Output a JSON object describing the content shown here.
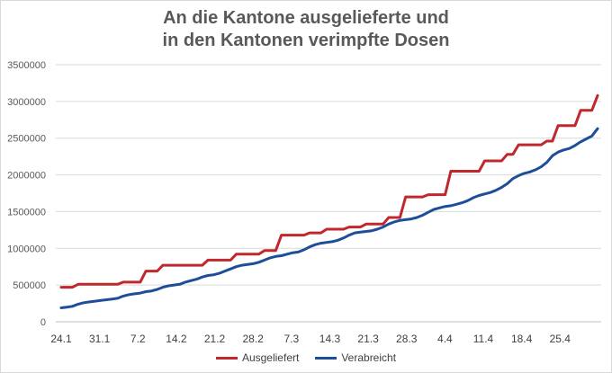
{
  "chart_data": {
    "type": "line",
    "title": [
      "An die Kantone ausgelieferte und",
      "in den Kantonen verimpfte Dosen"
    ],
    "xlabel": "",
    "ylabel": "",
    "x_tick_labels": [
      "24.1",
      "31.1",
      "7.2",
      "14.2",
      "21.2",
      "28.2",
      "7.3",
      "14.3",
      "21.3",
      "28.3",
      "4.4",
      "11.4",
      "18.4",
      "25.4"
    ],
    "x_start": "2021-01-24",
    "x_end": "2021-04-29",
    "ylim": [
      0,
      3500000
    ],
    "y_ticks": [
      0,
      500000,
      1000000,
      1500000,
      2000000,
      2500000,
      3000000,
      3500000
    ],
    "y_tick_labels": [
      "0",
      "500000",
      "1000000",
      "1500000",
      "2000000",
      "2500000",
      "3000000",
      "3500000"
    ],
    "grid": "horizontal",
    "legend_position": "bottom",
    "series": [
      {
        "name": "Ausgeliefert",
        "color": "#c0282d",
        "points": [
          [
            "2021-01-24",
            470000
          ],
          [
            "2021-01-26",
            470000
          ],
          [
            "2021-01-27",
            510000
          ],
          [
            "2021-02-03",
            510000
          ],
          [
            "2021-02-04",
            540000
          ],
          [
            "2021-02-07",
            540000
          ],
          [
            "2021-02-08",
            690000
          ],
          [
            "2021-02-10",
            690000
          ],
          [
            "2021-02-11",
            770000
          ],
          [
            "2021-02-18",
            770000
          ],
          [
            "2021-02-19",
            840000
          ],
          [
            "2021-02-23",
            840000
          ],
          [
            "2021-02-24",
            920000
          ],
          [
            "2021-02-28",
            920000
          ],
          [
            "2021-03-01",
            970000
          ],
          [
            "2021-03-03",
            970000
          ],
          [
            "2021-03-04",
            1180000
          ],
          [
            "2021-03-08",
            1180000
          ],
          [
            "2021-03-09",
            1210000
          ],
          [
            "2021-03-11",
            1210000
          ],
          [
            "2021-03-12",
            1260000
          ],
          [
            "2021-03-15",
            1260000
          ],
          [
            "2021-03-16",
            1290000
          ],
          [
            "2021-03-18",
            1290000
          ],
          [
            "2021-03-19",
            1330000
          ],
          [
            "2021-03-22",
            1330000
          ],
          [
            "2021-03-23",
            1420000
          ],
          [
            "2021-03-25",
            1420000
          ],
          [
            "2021-03-26",
            1700000
          ],
          [
            "2021-03-29",
            1700000
          ],
          [
            "2021-03-30",
            1730000
          ],
          [
            "2021-04-02",
            1730000
          ],
          [
            "2021-04-03",
            2050000
          ],
          [
            "2021-04-08",
            2050000
          ],
          [
            "2021-04-09",
            2190000
          ],
          [
            "2021-04-12",
            2190000
          ],
          [
            "2021-04-13",
            2280000
          ],
          [
            "2021-04-14",
            2280000
          ],
          [
            "2021-04-15",
            2410000
          ],
          [
            "2021-04-19",
            2410000
          ],
          [
            "2021-04-20",
            2460000
          ],
          [
            "2021-04-21",
            2460000
          ],
          [
            "2021-04-22",
            2670000
          ],
          [
            "2021-04-25",
            2670000
          ],
          [
            "2021-04-26",
            2880000
          ],
          [
            "2021-04-28",
            2880000
          ],
          [
            "2021-04-29",
            3080000
          ]
        ]
      },
      {
        "name": "Verabreicht",
        "color": "#1f4e99",
        "points": [
          [
            "2021-01-24",
            190000
          ],
          [
            "2021-01-25",
            200000
          ],
          [
            "2021-01-26",
            210000
          ],
          [
            "2021-01-27",
            240000
          ],
          [
            "2021-01-28",
            260000
          ],
          [
            "2021-01-29",
            270000
          ],
          [
            "2021-01-30",
            280000
          ],
          [
            "2021-01-31",
            290000
          ],
          [
            "2021-02-01",
            300000
          ],
          [
            "2021-02-02",
            310000
          ],
          [
            "2021-02-03",
            320000
          ],
          [
            "2021-02-04",
            350000
          ],
          [
            "2021-02-05",
            370000
          ],
          [
            "2021-02-06",
            380000
          ],
          [
            "2021-02-07",
            390000
          ],
          [
            "2021-02-08",
            410000
          ],
          [
            "2021-02-09",
            420000
          ],
          [
            "2021-02-10",
            440000
          ],
          [
            "2021-02-11",
            470000
          ],
          [
            "2021-02-12",
            490000
          ],
          [
            "2021-02-13",
            500000
          ],
          [
            "2021-02-14",
            510000
          ],
          [
            "2021-02-15",
            540000
          ],
          [
            "2021-02-16",
            560000
          ],
          [
            "2021-02-17",
            580000
          ],
          [
            "2021-02-18",
            610000
          ],
          [
            "2021-02-19",
            630000
          ],
          [
            "2021-02-20",
            640000
          ],
          [
            "2021-02-21",
            660000
          ],
          [
            "2021-02-22",
            690000
          ],
          [
            "2021-02-23",
            720000
          ],
          [
            "2021-02-24",
            750000
          ],
          [
            "2021-02-25",
            770000
          ],
          [
            "2021-02-26",
            780000
          ],
          [
            "2021-02-27",
            790000
          ],
          [
            "2021-02-28",
            810000
          ],
          [
            "2021-03-01",
            840000
          ],
          [
            "2021-03-02",
            870000
          ],
          [
            "2021-03-03",
            890000
          ],
          [
            "2021-03-04",
            900000
          ],
          [
            "2021-03-05",
            920000
          ],
          [
            "2021-03-06",
            940000
          ],
          [
            "2021-03-07",
            950000
          ],
          [
            "2021-03-08",
            980000
          ],
          [
            "2021-03-09",
            1020000
          ],
          [
            "2021-03-10",
            1050000
          ],
          [
            "2021-03-11",
            1070000
          ],
          [
            "2021-03-12",
            1080000
          ],
          [
            "2021-03-13",
            1090000
          ],
          [
            "2021-03-14",
            1110000
          ],
          [
            "2021-03-15",
            1140000
          ],
          [
            "2021-03-16",
            1180000
          ],
          [
            "2021-03-17",
            1210000
          ],
          [
            "2021-03-18",
            1220000
          ],
          [
            "2021-03-19",
            1230000
          ],
          [
            "2021-03-20",
            1240000
          ],
          [
            "2021-03-21",
            1260000
          ],
          [
            "2021-03-22",
            1290000
          ],
          [
            "2021-03-23",
            1330000
          ],
          [
            "2021-03-24",
            1360000
          ],
          [
            "2021-03-25",
            1380000
          ],
          [
            "2021-03-26",
            1390000
          ],
          [
            "2021-03-27",
            1400000
          ],
          [
            "2021-03-28",
            1420000
          ],
          [
            "2021-03-29",
            1450000
          ],
          [
            "2021-03-30",
            1490000
          ],
          [
            "2021-03-31",
            1530000
          ],
          [
            "2021-04-01",
            1550000
          ],
          [
            "2021-04-02",
            1570000
          ],
          [
            "2021-04-03",
            1580000
          ],
          [
            "2021-04-04",
            1600000
          ],
          [
            "2021-04-05",
            1620000
          ],
          [
            "2021-04-06",
            1650000
          ],
          [
            "2021-04-07",
            1690000
          ],
          [
            "2021-04-08",
            1720000
          ],
          [
            "2021-04-09",
            1740000
          ],
          [
            "2021-04-10",
            1760000
          ],
          [
            "2021-04-11",
            1790000
          ],
          [
            "2021-04-12",
            1830000
          ],
          [
            "2021-04-13",
            1880000
          ],
          [
            "2021-04-14",
            1950000
          ],
          [
            "2021-04-15",
            1990000
          ],
          [
            "2021-04-16",
            2020000
          ],
          [
            "2021-04-17",
            2040000
          ],
          [
            "2021-04-18",
            2070000
          ],
          [
            "2021-04-19",
            2110000
          ],
          [
            "2021-04-20",
            2170000
          ],
          [
            "2021-04-21",
            2260000
          ],
          [
            "2021-04-22",
            2310000
          ],
          [
            "2021-04-23",
            2340000
          ],
          [
            "2021-04-24",
            2360000
          ],
          [
            "2021-04-25",
            2400000
          ],
          [
            "2021-04-26",
            2450000
          ],
          [
            "2021-04-27",
            2490000
          ],
          [
            "2021-04-28",
            2530000
          ],
          [
            "2021-04-29",
            2630000
          ]
        ]
      }
    ]
  }
}
